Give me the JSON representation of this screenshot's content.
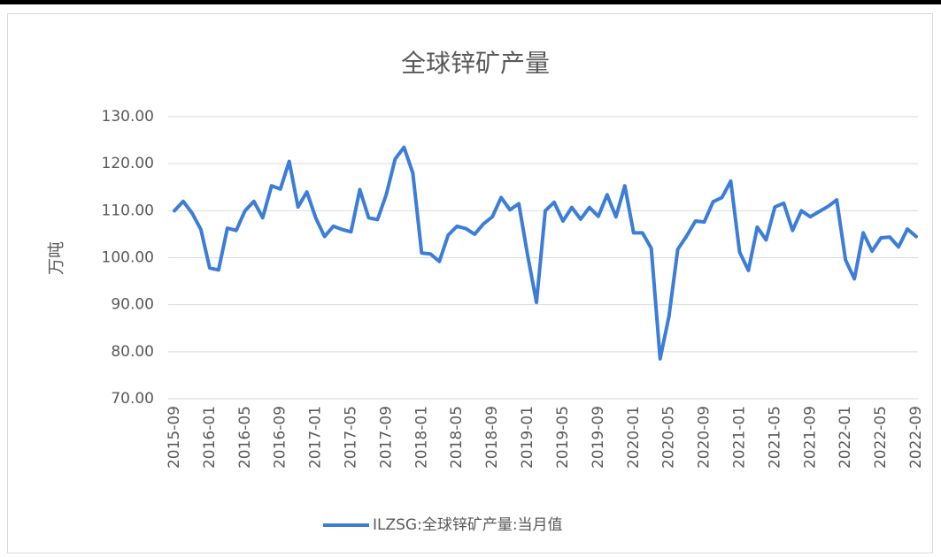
{
  "chart_data": {
    "type": "line",
    "title": "全球锌矿产量",
    "ylabel": "万吨",
    "categories": [
      "2015-09",
      null,
      null,
      null,
      "2016-01",
      null,
      null,
      null,
      "2016-05",
      null,
      null,
      null,
      "2016-09",
      null,
      null,
      null,
      "2017-01",
      null,
      null,
      null,
      "2017-05",
      null,
      null,
      null,
      "2017-09",
      null,
      null,
      null,
      "2018-01",
      null,
      null,
      null,
      "2018-05",
      null,
      null,
      null,
      "2018-09",
      null,
      null,
      null,
      "2019-01",
      null,
      null,
      null,
      "2019-05",
      null,
      null,
      null,
      "2019-09",
      null,
      null,
      null,
      "2020-01",
      null,
      null,
      null,
      "2020-05",
      null,
      null,
      null,
      "2020-09",
      null,
      null,
      null,
      "2021-01",
      null,
      null,
      null,
      "2021-05",
      null,
      null,
      null,
      "2021-09",
      null,
      null,
      null,
      "2022-01",
      null,
      null,
      null,
      "2022-05",
      null,
      null,
      null,
      "2022-09"
    ],
    "series": [
      {
        "name": "ILZSG:全球锌矿产量:当月值",
        "color": "#3b7dd8",
        "values": [
          110,
          112,
          109.5,
          106,
          97.8,
          97.4,
          106.3,
          105.8,
          110,
          112,
          108.5,
          115.3,
          114.6,
          120.5,
          110.8,
          114,
          108.5,
          104.5,
          106.7,
          106,
          105.5,
          114.5,
          108.5,
          108.1,
          113.5,
          121,
          123.5,
          118,
          101,
          100.8,
          99.2,
          104.8,
          106.7,
          106.2,
          105,
          107.2,
          108.7,
          112.8,
          110.2,
          111.5,
          100.5,
          90.5,
          110,
          111.8,
          107.8,
          110.7,
          108.2,
          110.7,
          108.8,
          113.4,
          108.7,
          115.3,
          105.3,
          105.3,
          102,
          78.5,
          87.5,
          101.8,
          104.6,
          107.8,
          107.6,
          111.9,
          112.8,
          116.3,
          101.2,
          97.3,
          106.5,
          103.8,
          110.8,
          111.6,
          105.8,
          110,
          108.7,
          109.8,
          110.9,
          112.3,
          99.5,
          95.5,
          105.3,
          101.4,
          104.2,
          104.4,
          102.3,
          106.1,
          104.5
        ]
      }
    ],
    "ylim": [
      70,
      130
    ],
    "yticks": [
      {
        "value": 70,
        "label": "70.00"
      },
      {
        "value": 80,
        "label": "80.00"
      },
      {
        "value": 90,
        "label": "90.00"
      },
      {
        "value": 100,
        "label": "100.00"
      },
      {
        "value": 110,
        "label": "110.00"
      },
      {
        "value": 120,
        "label": "120.00"
      },
      {
        "value": 130,
        "label": "130.00"
      }
    ],
    "grid": true,
    "legend": "bottom"
  }
}
